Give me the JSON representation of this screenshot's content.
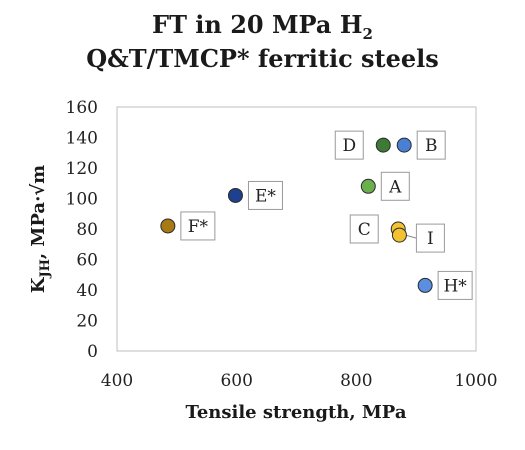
{
  "title": {
    "line1_prefix": "FT in 20 MPa H",
    "line1_sub": "2",
    "line2": "Q&T/TMCP* ferritic steels"
  },
  "chart_data": {
    "type": "scatter",
    "xlabel": "Tensile strength, MPa",
    "ylabel_main": "K",
    "ylabel_sub": "JH",
    "ylabel_rest": ", MPa·√m",
    "xlim": [
      400,
      1000
    ],
    "ylim": [
      0,
      160
    ],
    "xticks": [
      400,
      600,
      800,
      1000
    ],
    "yticks": [
      0,
      20,
      40,
      60,
      80,
      100,
      120,
      140,
      160
    ],
    "grid": false,
    "points": [
      {
        "label": "A",
        "x": 820,
        "y": 108,
        "color": "#6ab04c",
        "label_side": "right"
      },
      {
        "label": "B",
        "x": 880,
        "y": 135,
        "color": "#4a7fd4",
        "label_side": "right"
      },
      {
        "label": "C",
        "x": 870,
        "y": 80,
        "color": "#f2c230",
        "label_side": "left"
      },
      {
        "label": "D",
        "x": 845,
        "y": 135,
        "color": "#3d7a35",
        "label_side": "left"
      },
      {
        "label": "E*",
        "x": 598,
        "y": 102,
        "color": "#1f3f8f",
        "label_side": "right"
      },
      {
        "label": "F*",
        "x": 485,
        "y": 82,
        "color": "#a87a14",
        "label_side": "right"
      },
      {
        "label": "H*",
        "x": 915,
        "y": 43,
        "color": "#5b8ee0",
        "label_side": "right"
      },
      {
        "label": "I",
        "x": 872,
        "y": 76,
        "color": "#f2c230",
        "label_side": "right-down"
      }
    ]
  }
}
